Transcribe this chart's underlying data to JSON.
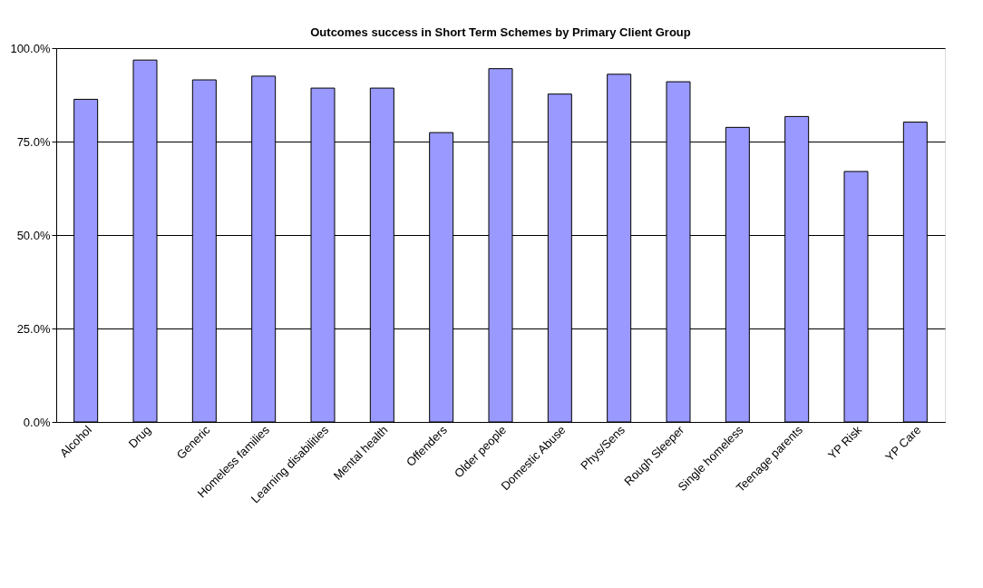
{
  "chart_data": {
    "type": "bar",
    "title": "Outcomes success in Short Term Schemes by Primary Client Group",
    "categories": [
      "Alcohol",
      "Drug",
      "Generic",
      "Homeless families",
      "Learning disabilities",
      "Mental health",
      "Offenders",
      "Older people",
      "Domestic Abuse",
      "Phys/Sens",
      "Rough Sleeper",
      "Single homeless",
      "Teenage parents",
      "YP Risk",
      "YP Care"
    ],
    "values": [
      86.3,
      96.8,
      91.5,
      92.5,
      89.3,
      89.3,
      77.4,
      94.5,
      87.7,
      93.0,
      91.0,
      78.8,
      81.7,
      67.0,
      80.2
    ],
    "color": "#9999ff",
    "ylim": [
      0,
      100
    ],
    "yticks": [
      {
        "value": 0,
        "label": "0.0%"
      },
      {
        "value": 25,
        "label": "25.0%"
      },
      {
        "value": 50,
        "label": "50.0%"
      },
      {
        "value": 75,
        "label": "75.0%"
      },
      {
        "value": 100,
        "label": "100.0%"
      }
    ],
    "grid": "y"
  }
}
